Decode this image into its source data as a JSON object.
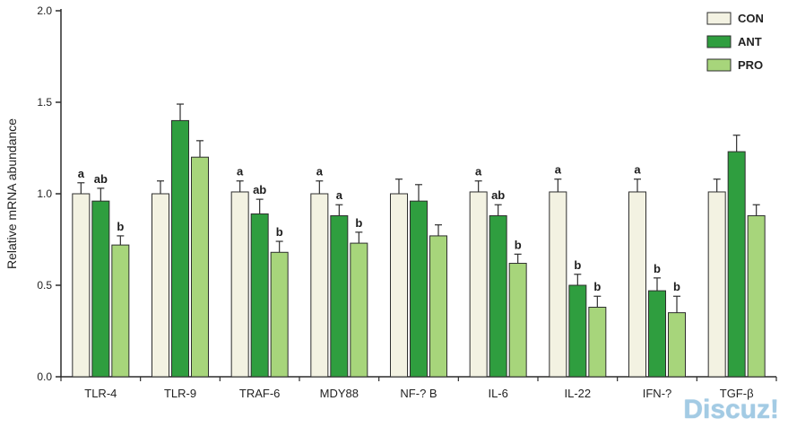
{
  "chart_data": {
    "type": "bar",
    "title": "",
    "xlabel": "",
    "ylabel": "Relative mRNA abundance",
    "ylim": [
      0.0,
      2.0
    ],
    "yticks": [
      0.0,
      0.5,
      1.0,
      1.5,
      2.0
    ],
    "grid": false,
    "legend_position": "top-right",
    "categories": [
      "TLR-4",
      "TLR-9",
      "TRAF-6",
      "MDY88",
      "NF-? B",
      "IL-6",
      "IL-22",
      "IFN-?",
      "TGF-β"
    ],
    "series": [
      {
        "name": "CON",
        "color": "#f3f2e2",
        "values": [
          1.0,
          1.0,
          1.01,
          1.0,
          1.0,
          1.01,
          1.01,
          1.01,
          1.01
        ],
        "errors": [
          0.06,
          0.07,
          0.06,
          0.07,
          0.08,
          0.06,
          0.07,
          0.07,
          0.07
        ],
        "letters": [
          "a",
          "",
          "a",
          "a",
          "",
          "a",
          "a",
          "a",
          ""
        ]
      },
      {
        "name": "ANT",
        "color": "#2f9e3f",
        "values": [
          0.96,
          1.4,
          0.89,
          0.88,
          0.96,
          0.88,
          0.5,
          0.47,
          1.23
        ],
        "errors": [
          0.07,
          0.09,
          0.08,
          0.06,
          0.09,
          0.06,
          0.06,
          0.07,
          0.09
        ],
        "letters": [
          "ab",
          "",
          "ab",
          "a",
          "",
          "ab",
          "b",
          "b",
          ""
        ]
      },
      {
        "name": "PRO",
        "color": "#a7d57b",
        "values": [
          0.72,
          1.2,
          0.68,
          0.73,
          0.77,
          0.62,
          0.38,
          0.35,
          0.88
        ],
        "errors": [
          0.05,
          0.09,
          0.06,
          0.06,
          0.06,
          0.05,
          0.06,
          0.09,
          0.06
        ],
        "letters": [
          "b",
          "",
          "b",
          "b",
          "",
          "b",
          "b",
          "b",
          ""
        ]
      }
    ]
  },
  "watermark": {
    "text": "Discuz!"
  }
}
